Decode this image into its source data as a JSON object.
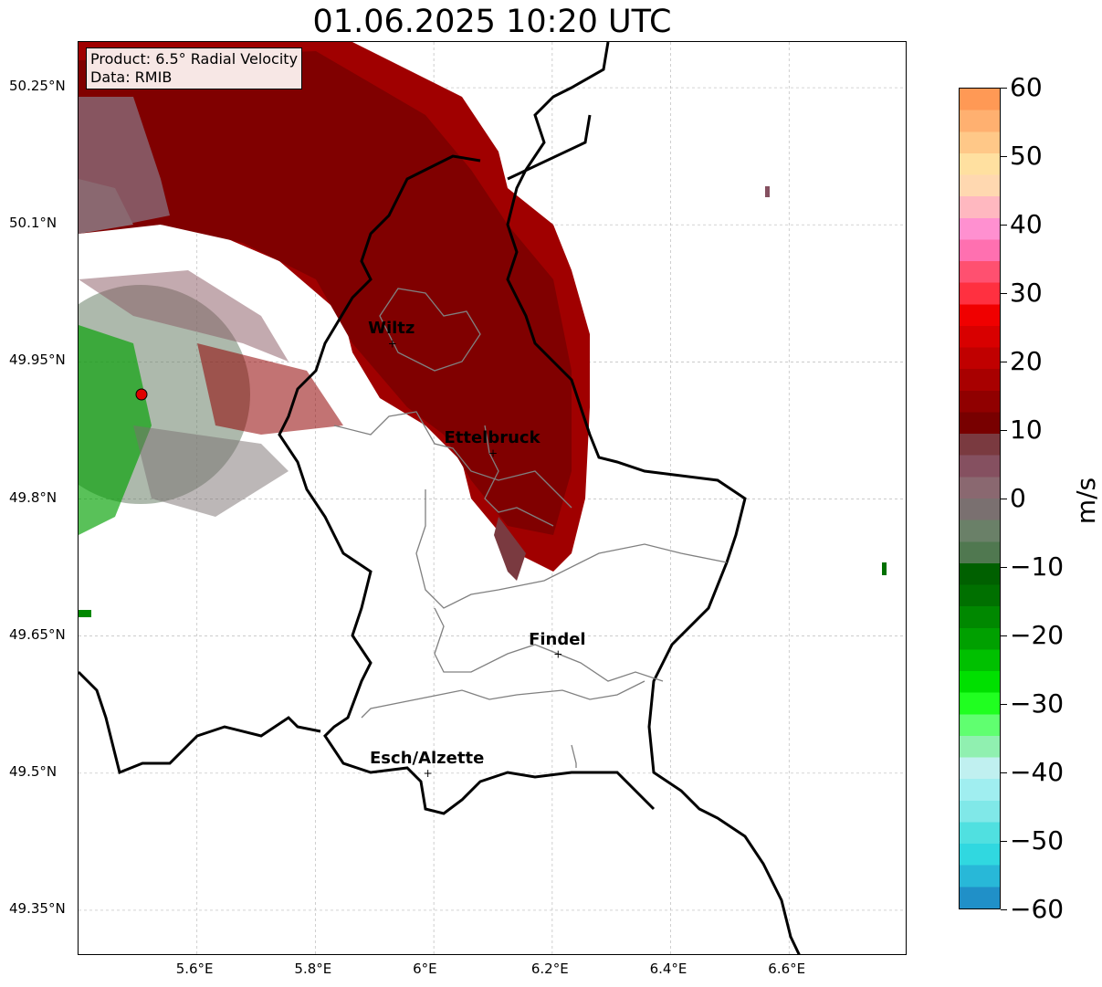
{
  "title": "01.06.2025 10:20 UTC",
  "info_box": {
    "product": "Product: 6.5° Radial Velocity",
    "data": "Data: RMIB"
  },
  "map": {
    "lon_range": [
      5.4,
      6.8
    ],
    "lat_range": [
      49.3,
      50.3
    ],
    "lon_ticks": [
      "5.6°E",
      "5.8°E",
      "6°E",
      "6.2°E",
      "6.4°E",
      "6.6°E"
    ],
    "lat_ticks": [
      "50.25°N",
      "50.1°N",
      "49.95°N",
      "49.8°N",
      "49.65°N",
      "49.5°N",
      "49.35°N"
    ],
    "gridlines": true,
    "radar_marker_color": "#e00000",
    "cities": [
      {
        "name": "Wiltz",
        "lon": 5.93,
        "lat": 49.97
      },
      {
        "name": "Ettelbruck",
        "lon": 6.1,
        "lat": 49.85
      },
      {
        "name": "Findel",
        "lon": 6.21,
        "lat": 49.63
      },
      {
        "name": "Esch/Alzette",
        "lon": 5.99,
        "lat": 49.5
      }
    ]
  },
  "colorbar": {
    "unit": "m/s",
    "range": [
      -60,
      60
    ],
    "ticks": [
      "60",
      "50",
      "40",
      "30",
      "20",
      "10",
      "0",
      "−10",
      "−20",
      "−30",
      "−40",
      "−50",
      "−60"
    ],
    "colors_top_to_bottom": [
      "#ff9955",
      "#ffb070",
      "#ffc888",
      "#ffe0a0",
      "#ffd8b0",
      "#ffb8c0",
      "#ff90d0",
      "#ff70b0",
      "#ff5070",
      "#ff3040",
      "#f00000",
      "#d80000",
      "#c00000",
      "#a80000",
      "#900000",
      "#780000",
      "#7a3a40",
      "#855060",
      "#8a6870",
      "#7a7070",
      "#6a8068",
      "#507850",
      "#006000",
      "#007000",
      "#008800",
      "#00a000",
      "#00c000",
      "#00e000",
      "#20ff20",
      "#60ff70",
      "#90f0b0",
      "#c0f0f0",
      "#a0eef0",
      "#80e8e8",
      "#50e0e0",
      "#30d8e0",
      "#28b8d8",
      "#2090c8"
    ]
  }
}
